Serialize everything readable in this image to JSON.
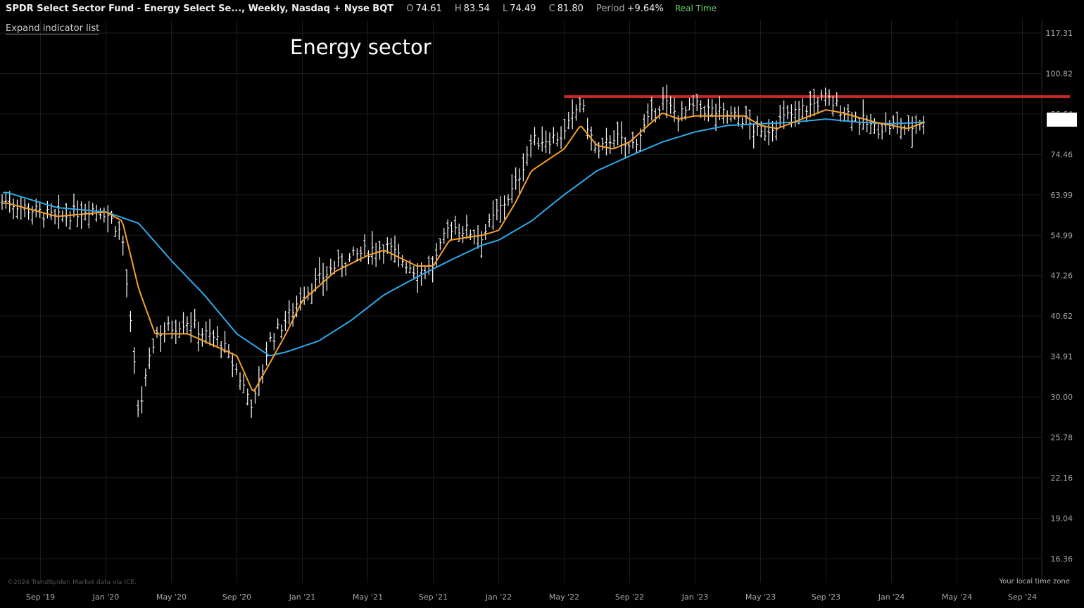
{
  "header": {
    "symbol": "SPDR Select Sector Fund - Energy Select Se..., Weekly, Nasdaq + Nyse BQT",
    "open_label": "O",
    "open_value": "74.61",
    "high_label": "H",
    "high_value": "83.54",
    "low_label": "L",
    "low_value": "74.49",
    "close_label": "C",
    "close_value": "81.80",
    "period_label": "Period",
    "period_value": "+9.64%",
    "realtime": "Real Time"
  },
  "expand_indicators": "Expand indicator list",
  "annotation_title": "Energy sector",
  "footer": {
    "copyright": "©2024 TrendSpider. Market data via ICE.",
    "timezone": "Your local time zone"
  },
  "colors": {
    "background": "#000000",
    "bars": "#ffffff",
    "fast_ma": "#f5a02a",
    "slow_ma": "#2fa8e8",
    "resistance": "#c62828",
    "grid": "#1c1c1c"
  },
  "chart_data": {
    "type": "ohlc",
    "yscale": "log",
    "ylim": [
      15.1,
      124
    ],
    "y_ticks": [
      "117.31",
      "100.82",
      "86.64",
      "74.46",
      "63.99",
      "54.99",
      "47.26",
      "40.62",
      "34.91",
      "30.00",
      "25.78",
      "22.16",
      "19.04",
      "16.36"
    ],
    "x_ticks": [
      "Sep '19",
      "Jan '20",
      "May '20",
      "Sep '20",
      "Jan '21",
      "May '21",
      "Sep '21",
      "Jan '22",
      "May '22",
      "Sep '22",
      "Jan '23",
      "May '23",
      "Sep '23",
      "Jan '24",
      "May '24",
      "Sep '24"
    ],
    "resistance_level": 92.5,
    "last_price": 81.8,
    "price_anchors": [
      [
        "Jul '19",
        62.5
      ],
      [
        "Oct '19",
        58.5
      ],
      [
        "Dec '19",
        61
      ],
      [
        "Jan '20",
        60
      ],
      [
        "Feb '20",
        55
      ],
      [
        "Mar '20",
        28
      ],
      [
        "Apr '20",
        38
      ],
      [
        "Jun '20",
        40
      ],
      [
        "Jul '20",
        38
      ],
      [
        "Aug '20",
        37
      ],
      [
        "Sep '20",
        33
      ],
      [
        "Oct '20",
        29
      ],
      [
        "Nov '20",
        37
      ],
      [
        "Dec '20",
        40
      ],
      [
        "Jan '21",
        44
      ],
      [
        "Mar '21",
        49
      ],
      [
        "May '21",
        52
      ],
      [
        "Jun '21",
        53
      ],
      [
        "Aug '21",
        48
      ],
      [
        "Sep '21",
        49
      ],
      [
        "Oct '21",
        57
      ],
      [
        "Dec '21",
        55
      ],
      [
        "Feb '22",
        66
      ],
      [
        "Mar '22",
        78
      ],
      [
        "May '22",
        80
      ],
      [
        "Jun '22",
        91
      ],
      [
        "Jul '22",
        74
      ],
      [
        "Aug '22",
        80
      ],
      [
        "Sep '22",
        76
      ],
      [
        "Nov '22",
        91
      ],
      [
        "Dec '22",
        86
      ],
      [
        "Jan '23",
        89
      ],
      [
        "Apr '23",
        85
      ],
      [
        "May '23",
        80
      ],
      [
        "Jun '23",
        84
      ],
      [
        "Sep '23",
        92
      ],
      [
        "Oct '23",
        88
      ],
      [
        "Dec '23",
        82
      ],
      [
        "Jan '24",
        83
      ],
      [
        "Feb '24",
        82
      ],
      [
        "Mar '24",
        85
      ]
    ],
    "fast_ma_anchors": [
      [
        "Jul '19",
        62
      ],
      [
        "Oct '19",
        59
      ],
      [
        "Jan '20",
        60
      ],
      [
        "Feb '20",
        58
      ],
      [
        "Mar '20",
        45
      ],
      [
        "Apr '20",
        38
      ],
      [
        "Jun '20",
        38
      ],
      [
        "Sep '20",
        35
      ],
      [
        "Oct '20",
        30.5
      ],
      [
        "Nov '20",
        34
      ],
      [
        "Dec '20",
        38
      ],
      [
        "Jan '21",
        43
      ],
      [
        "Mar '21",
        48
      ],
      [
        "May '21",
        51
      ],
      [
        "Jun '21",
        52
      ],
      [
        "Aug '21",
        49
      ],
      [
        "Sep '21",
        49
      ],
      [
        "Oct '21",
        54
      ],
      [
        "Dec '21",
        55
      ],
      [
        "Jan '22",
        56
      ],
      [
        "Feb '22",
        62
      ],
      [
        "Mar '22",
        70
      ],
      [
        "May '22",
        76
      ],
      [
        "Jun '22",
        83
      ],
      [
        "Jul '22",
        77
      ],
      [
        "Aug '22",
        76
      ],
      [
        "Sep '22",
        78
      ],
      [
        "Nov '22",
        87
      ],
      [
        "Dec '22",
        85
      ],
      [
        "Jan '23",
        86
      ],
      [
        "Apr '23",
        86
      ],
      [
        "May '23",
        83
      ],
      [
        "Jun '23",
        82
      ],
      [
        "Sep '23",
        88
      ],
      [
        "Oct '23",
        87
      ],
      [
        "Dec '23",
        84
      ],
      [
        "Feb '24",
        82
      ],
      [
        "Mar '24",
        84
      ]
    ],
    "slow_ma_anchors": [
      [
        "Jul '19",
        64.5
      ],
      [
        "Oct '19",
        61
      ],
      [
        "Jan '20",
        60
      ],
      [
        "Mar '20",
        57.5
      ],
      [
        "May '20",
        50
      ],
      [
        "Jul '20",
        44
      ],
      [
        "Sep '20",
        38
      ],
      [
        "Nov '20",
        35
      ],
      [
        "Dec '20",
        35.5
      ],
      [
        "Feb '21",
        37
      ],
      [
        "Apr '21",
        40
      ],
      [
        "Jun '21",
        44
      ],
      [
        "Aug '21",
        47
      ],
      [
        "Oct '21",
        50
      ],
      [
        "Dec '21",
        53
      ],
      [
        "Jan '22",
        54
      ],
      [
        "Mar '22",
        58
      ],
      [
        "May '22",
        64
      ],
      [
        "Jul '22",
        70
      ],
      [
        "Sep '22",
        74
      ],
      [
        "Nov '22",
        78
      ],
      [
        "Jan '23",
        81
      ],
      [
        "Mar '23",
        83
      ],
      [
        "May '23",
        83.5
      ],
      [
        "Jul '23",
        84
      ],
      [
        "Sep '23",
        85
      ],
      [
        "Nov '23",
        84
      ],
      [
        "Jan '24",
        83.5
      ],
      [
        "Mar '24",
        84
      ]
    ]
  }
}
